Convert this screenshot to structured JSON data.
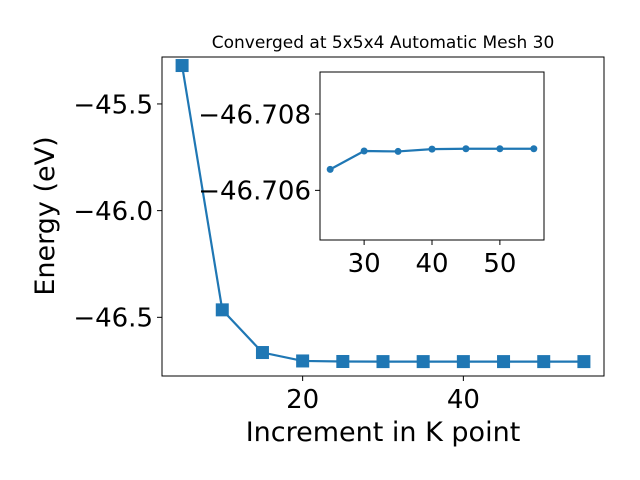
{
  "chart_data": [
    {
      "type": "line",
      "title": "Converged at 5x5x4 Automatic Mesh 30",
      "xlabel": "Increment in K point",
      "ylabel": "Energy (eV)",
      "x_ticks": [
        20,
        40
      ],
      "x_tick_labels": [
        "20",
        "40"
      ],
      "y_ticks": [
        -45.5,
        -46.0,
        -46.5
      ],
      "y_tick_labels": [
        "−45.5",
        "−46.0",
        "−46.5"
      ],
      "xlim": [
        2.5,
        57.5
      ],
      "ylim": [
        -46.775,
        -45.28
      ],
      "series": [
        {
          "marker": "square",
          "color": "#1f77b4",
          "x": [
            5,
            10,
            15,
            20,
            25,
            30,
            35,
            40,
            45,
            50,
            55
          ],
          "y": [
            -45.32,
            -46.465,
            -46.665,
            -46.7045,
            -46.707,
            -46.7075,
            -46.7075,
            -46.7075,
            -46.7075,
            -46.7075,
            -46.7075
          ]
        }
      ],
      "grid": false
    },
    {
      "type": "line",
      "title": "",
      "xlabel": "",
      "ylabel": "",
      "inset": true,
      "x_ticks": [
        30,
        40,
        50
      ],
      "x_tick_labels": [
        "30",
        "40",
        "50"
      ],
      "y_ticks": [
        -46.708,
        -46.706
      ],
      "y_tick_labels": [
        "−46.708",
        "−46.706"
      ],
      "xlim": [
        23.5,
        56.5
      ],
      "ylim": [
        -46.7047,
        -46.7091
      ],
      "y_inverted": true,
      "series": [
        {
          "marker": "circle",
          "color": "#1f77b4",
          "x": [
            25,
            30,
            35,
            40,
            45,
            50,
            55
          ],
          "y": [
            -46.70655,
            -46.70703,
            -46.70702,
            -46.70708,
            -46.70709,
            -46.70709,
            -46.70709
          ]
        }
      ],
      "grid": false
    }
  ]
}
